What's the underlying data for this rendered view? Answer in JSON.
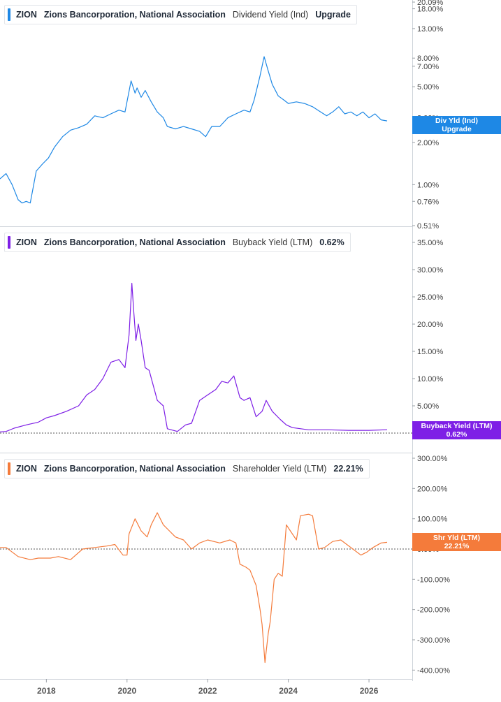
{
  "colors": {
    "dividend": "#1e88e5",
    "buyback": "#7e1fe6",
    "shareholder": "#f47b3b"
  },
  "chart_data": [
    {
      "type": "line",
      "ticker": "ZION",
      "company": "Zions Bancorporation, National Association",
      "metric": "Dividend Yield (Ind)",
      "legend_value": "Upgrade",
      "tag_line1": "Div Yld (Ind)",
      "tag_line2": "Upgrade",
      "y_scale": "log",
      "y_ticks": [
        "0.51%",
        "0.76%",
        "1.00%",
        "2.00%",
        "3.00%",
        "5.00%",
        "7.00%",
        "8.00%",
        "13.00%",
        "18.00%",
        "20.09%"
      ],
      "ylim": [
        0.51,
        20.09
      ],
      "x": [
        2016.85,
        2017.0,
        2017.15,
        2017.3,
        2017.4,
        2017.5,
        2017.6,
        2017.75,
        2017.9,
        2018.05,
        2018.2,
        2018.4,
        2018.6,
        2018.8,
        2019.0,
        2019.2,
        2019.4,
        2019.6,
        2019.8,
        2019.95,
        2020.1,
        2020.2,
        2020.25,
        2020.35,
        2020.45,
        2020.6,
        2020.75,
        2020.9,
        2021.0,
        2021.2,
        2021.4,
        2021.6,
        2021.8,
        2021.95,
        2022.1,
        2022.3,
        2022.5,
        2022.7,
        2022.9,
        2023.05,
        2023.15,
        2023.3,
        2023.4,
        2023.5,
        2023.6,
        2023.75,
        2023.9,
        2024.0,
        2024.2,
        2024.4,
        2024.6,
        2024.8,
        2024.95,
        2025.1,
        2025.25,
        2025.4,
        2025.55,
        2025.7,
        2025.85,
        2026.0,
        2026.15,
        2026.3,
        2026.45
      ],
      "y": [
        1.1,
        1.2,
        1.0,
        0.78,
        0.74,
        0.76,
        0.74,
        1.25,
        1.4,
        1.55,
        1.85,
        2.2,
        2.45,
        2.55,
        2.7,
        3.1,
        3.0,
        3.2,
        3.4,
        3.3,
        5.5,
        4.5,
        4.9,
        4.2,
        4.7,
        3.9,
        3.3,
        3.0,
        2.6,
        2.5,
        2.6,
        2.5,
        2.4,
        2.2,
        2.6,
        2.6,
        3.0,
        3.2,
        3.4,
        3.3,
        4.0,
        6.0,
        8.2,
        6.5,
        5.2,
        4.3,
        4.0,
        3.8,
        3.9,
        3.8,
        3.6,
        3.3,
        3.1,
        3.3,
        3.6,
        3.2,
        3.3,
        3.1,
        3.3,
        3.0,
        3.2,
        2.9,
        2.85
      ]
    },
    {
      "type": "line",
      "ticker": "ZION",
      "company": "Zions Bancorporation, National Association",
      "metric": "Buyback Yield (LTM)",
      "legend_value": "0.62%",
      "tag_line1": "Buyback Yield (LTM)",
      "tag_line2": "0.62%",
      "y_scale": "linear",
      "y_ticks": [
        "35.00%",
        "30.00%",
        "25.00%",
        "20.00%",
        "15.00%",
        "10.00%",
        "5.00%",
        "0.00%"
      ],
      "ylim": [
        0,
        35
      ],
      "last_value": 0.62,
      "x": [
        2016.85,
        2017.0,
        2017.2,
        2017.5,
        2017.8,
        2018.0,
        2018.2,
        2018.5,
        2018.8,
        2019.0,
        2019.2,
        2019.4,
        2019.6,
        2019.8,
        2019.95,
        2020.05,
        2020.12,
        2020.17,
        2020.22,
        2020.28,
        2020.35,
        2020.45,
        2020.55,
        2020.75,
        2020.9,
        2021.0,
        2021.25,
        2021.45,
        2021.6,
        2021.8,
        2022.0,
        2022.2,
        2022.35,
        2022.5,
        2022.65,
        2022.8,
        2022.9,
        2023.05,
        2023.2,
        2023.35,
        2023.45,
        2023.6,
        2023.8,
        2023.95,
        2024.1,
        2024.5,
        2025.0,
        2025.5,
        2026.0,
        2026.45
      ],
      "y": [
        0.2,
        0.3,
        0.9,
        1.5,
        2.0,
        2.8,
        3.2,
        4.0,
        5.0,
        7.0,
        8.0,
        10.0,
        13.0,
        13.5,
        12.0,
        18.0,
        27.5,
        22.0,
        17.0,
        20.0,
        17.0,
        12.0,
        11.5,
        6.0,
        5.0,
        0.8,
        0.3,
        1.5,
        1.8,
        6.0,
        7.0,
        8.0,
        9.5,
        9.2,
        10.5,
        6.5,
        6.0,
        6.5,
        3.0,
        4.0,
        6.0,
        4.0,
        2.5,
        1.5,
        1.0,
        0.6,
        0.6,
        0.5,
        0.5,
        0.62
      ]
    },
    {
      "type": "line",
      "ticker": "ZION",
      "company": "Zions Bancorporation, National Association",
      "metric": "Shareholder Yield (LTM)",
      "legend_value": "22.21%",
      "tag_line1": "Shr Yld (LTM)",
      "tag_line2": "22.21%",
      "y_scale": "linear",
      "y_ticks": [
        "300.00%",
        "200.00%",
        "100.00%",
        "0.00%",
        "-100.00%",
        "-200.00%",
        "-300.00%",
        "-400.00%"
      ],
      "ylim": [
        -400,
        300
      ],
      "last_value": 22.21,
      "x": [
        2016.85,
        2017.0,
        2017.3,
        2017.6,
        2017.8,
        2018.1,
        2018.3,
        2018.6,
        2018.9,
        2019.2,
        2019.5,
        2019.7,
        2019.9,
        2020.0,
        2020.05,
        2020.2,
        2020.35,
        2020.5,
        2020.6,
        2020.75,
        2020.9,
        2021.05,
        2021.2,
        2021.4,
        2021.6,
        2021.8,
        2022.0,
        2022.3,
        2022.55,
        2022.7,
        2022.8,
        2022.95,
        2023.05,
        2023.2,
        2023.3,
        2023.35,
        2023.42,
        2023.5,
        2023.55,
        2023.65,
        2023.75,
        2023.85,
        2023.95,
        2024.05,
        2024.2,
        2024.3,
        2024.5,
        2024.6,
        2024.75,
        2024.9,
        2025.1,
        2025.3,
        2025.6,
        2025.8,
        2025.95,
        2026.1,
        2026.3,
        2026.45
      ],
      "y": [
        5,
        5,
        -25,
        -35,
        -30,
        -30,
        -25,
        -35,
        0,
        5,
        10,
        15,
        -20,
        -20,
        50,
        100,
        60,
        40,
        80,
        120,
        80,
        60,
        40,
        30,
        0,
        20,
        30,
        20,
        30,
        20,
        -50,
        -60,
        -70,
        -120,
        -200,
        -250,
        -375,
        -280,
        -240,
        -100,
        -80,
        -90,
        80,
        60,
        30,
        110,
        115,
        110,
        0,
        5,
        25,
        30,
        0,
        -20,
        -10,
        5,
        20,
        22.21
      ]
    }
  ],
  "x_axis": {
    "ticks": [
      "2018",
      "2020",
      "2022",
      "2024",
      "2026"
    ],
    "tick_values": [
      2018,
      2020,
      2022,
      2024,
      2026
    ],
    "xlim": [
      2016.85,
      2026.9
    ]
  }
}
